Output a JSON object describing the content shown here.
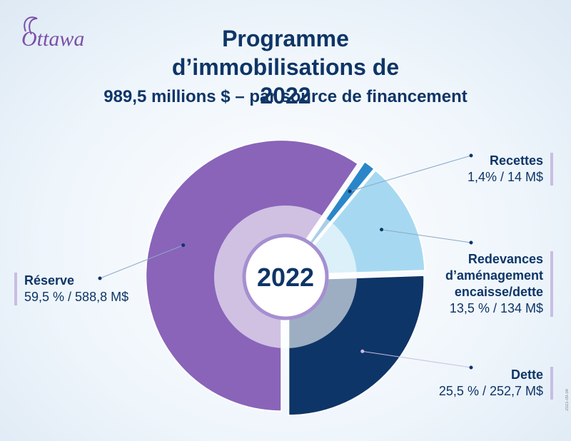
{
  "logo": "Ottawa",
  "stamp": "2021-09-34",
  "chart_data": {
    "type": "pie",
    "title": "Programme d’immobilisations de 2022",
    "subtitle": "989,5 millions $ – par source de financement",
    "center_label": "2022",
    "categories": [
      "Recettes",
      "Redevances d’aménagement encaisse/dette",
      "Dette",
      "Réserve"
    ],
    "values": [
      1.4,
      13.5,
      25.5,
      59.5
    ],
    "value_labels": [
      "1,4% / 14 M$",
      "13,5 % / 134 M$",
      "25,5 % / 252,7 M$",
      "59,5 % / 588,8 M$"
    ],
    "colors": [
      "#2a86c8",
      "#a6d9f1",
      "#0e3567",
      "#8964b9"
    ]
  }
}
